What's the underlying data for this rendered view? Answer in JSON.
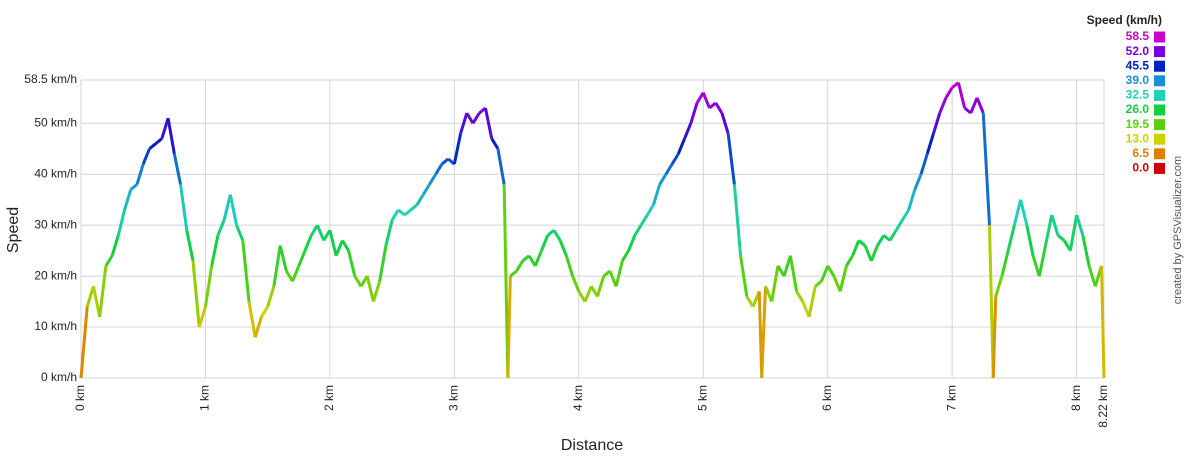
{
  "chart_data": {
    "type": "line",
    "x_label": "Distance",
    "y_label": "Speed",
    "credit": "created by GPSVisualizer.com",
    "legend_title": "Speed (km/h)",
    "color_scale": [
      {
        "value": 58.5,
        "label": "58.5",
        "color": "#cc00cc"
      },
      {
        "value": 52,
        "label": "52.0",
        "color": "#7a00dd"
      },
      {
        "value": 45.5,
        "label": "45.5",
        "color": "#0020c0"
      },
      {
        "value": 39,
        "label": "39.0",
        "color": "#1a8fd0"
      },
      {
        "value": 32.5,
        "label": "32.5",
        "color": "#20d0b8"
      },
      {
        "value": 26,
        "label": "26.0",
        "color": "#10d040"
      },
      {
        "value": 19.5,
        "label": "19.5",
        "color": "#58d010"
      },
      {
        "value": 13,
        "label": "13.0",
        "color": "#d0d000"
      },
      {
        "value": 6.5,
        "label": "6.5",
        "color": "#e08000"
      },
      {
        "value": 0,
        "label": "0.0",
        "color": "#d00000"
      }
    ],
    "xlim": [
      0,
      8.22
    ],
    "ylim": [
      0,
      58.5
    ],
    "xticks": [
      {
        "value": 0,
        "label": "0 km"
      },
      {
        "value": 1,
        "label": "1 km"
      },
      {
        "value": 2,
        "label": "2 km"
      },
      {
        "value": 3,
        "label": "3 km"
      },
      {
        "value": 4,
        "label": "4 km"
      },
      {
        "value": 5,
        "label": "5 km"
      },
      {
        "value": 6,
        "label": "6 km"
      },
      {
        "value": 7,
        "label": "7 km"
      },
      {
        "value": 8,
        "label": "8 km"
      },
      {
        "value": 8.22,
        "label": "8.22 km"
      }
    ],
    "yticks": [
      {
        "value": 0,
        "label": "0 km/h"
      },
      {
        "value": 10,
        "label": "10 km/h"
      },
      {
        "value": 20,
        "label": "20 km/h"
      },
      {
        "value": 30,
        "label": "30 km/h"
      },
      {
        "value": 40,
        "label": "40 km/h"
      },
      {
        "value": 50,
        "label": "50 km/h"
      },
      {
        "value": 58.5,
        "label": "58.5 km/h"
      }
    ],
    "grid": true,
    "x": [
      0,
      0.05,
      0.1,
      0.15,
      0.2,
      0.25,
      0.3,
      0.35,
      0.4,
      0.45,
      0.5,
      0.55,
      0.6,
      0.65,
      0.7,
      0.75,
      0.8,
      0.85,
      0.9,
      0.95,
      1,
      1.05,
      1.1,
      1.15,
      1.2,
      1.25,
      1.3,
      1.35,
      1.4,
      1.45,
      1.5,
      1.55,
      1.6,
      1.65,
      1.7,
      1.75,
      1.8,
      1.85,
      1.9,
      1.95,
      2,
      2.05,
      2.1,
      2.15,
      2.2,
      2.25,
      2.3,
      2.35,
      2.4,
      2.45,
      2.5,
      2.55,
      2.6,
      2.65,
      2.7,
      2.75,
      2.8,
      2.85,
      2.9,
      2.95,
      3,
      3.05,
      3.1,
      3.15,
      3.2,
      3.25,
      3.3,
      3.35,
      3.4,
      3.43,
      3.45,
      3.5,
      3.55,
      3.6,
      3.65,
      3.7,
      3.75,
      3.8,
      3.85,
      3.9,
      3.95,
      4,
      4.05,
      4.1,
      4.15,
      4.2,
      4.25,
      4.3,
      4.35,
      4.4,
      4.45,
      4.5,
      4.55,
      4.6,
      4.65,
      4.7,
      4.75,
      4.8,
      4.85,
      4.9,
      4.95,
      5,
      5.05,
      5.1,
      5.15,
      5.2,
      5.25,
      5.3,
      5.35,
      5.4,
      5.45,
      5.47,
      5.5,
      5.55,
      5.6,
      5.65,
      5.7,
      5.75,
      5.8,
      5.85,
      5.9,
      5.95,
      6,
      6.05,
      6.1,
      6.15,
      6.2,
      6.25,
      6.3,
      6.35,
      6.4,
      6.45,
      6.5,
      6.55,
      6.6,
      6.65,
      6.7,
      6.75,
      6.8,
      6.85,
      6.9,
      6.95,
      7,
      7.05,
      7.1,
      7.15,
      7.2,
      7.25,
      7.3,
      7.33,
      7.35,
      7.4,
      7.45,
      7.5,
      7.55,
      7.6,
      7.65,
      7.7,
      7.75,
      7.8,
      7.85,
      7.9,
      7.95,
      8,
      8.05,
      8.1,
      8.15,
      8.2,
      8.22
    ],
    "values": [
      0,
      14,
      18,
      12,
      22,
      24,
      28,
      33,
      37,
      38,
      42,
      45,
      46,
      47,
      51,
      44,
      38,
      29,
      23,
      10,
      14,
      22,
      28,
      31,
      36,
      30,
      27,
      15,
      8,
      12,
      14,
      18,
      26,
      21,
      19,
      22,
      25,
      28,
      30,
      27,
      29,
      24,
      27,
      25,
      20,
      18,
      20,
      15,
      19,
      26,
      31,
      33,
      32,
      33,
      34,
      36,
      38,
      40,
      42,
      43,
      42,
      48,
      52,
      50,
      52,
      53,
      47,
      45,
      38,
      0,
      20,
      21,
      23,
      24,
      22,
      25,
      28,
      29,
      27,
      24,
      20,
      17,
      15,
      18,
      16,
      20,
      21,
      18,
      23,
      25,
      28,
      30,
      32,
      34,
      38,
      40,
      42,
      44,
      47,
      50,
      54,
      56,
      53,
      54,
      52,
      48,
      38,
      24,
      16,
      14,
      17,
      0,
      18,
      15,
      22,
      20,
      24,
      17,
      15,
      12,
      18,
      19,
      22,
      20,
      17,
      22,
      24,
      27,
      26,
      23,
      26,
      28,
      27,
      29,
      31,
      33,
      37,
      40,
      44,
      48,
      52,
      55,
      57,
      58,
      53,
      52,
      55,
      52,
      30,
      0,
      16,
      20,
      25,
      30,
      35,
      30,
      24,
      20,
      26,
      32,
      28,
      27,
      25,
      32,
      28,
      22,
      18,
      22,
      0
    ]
  }
}
